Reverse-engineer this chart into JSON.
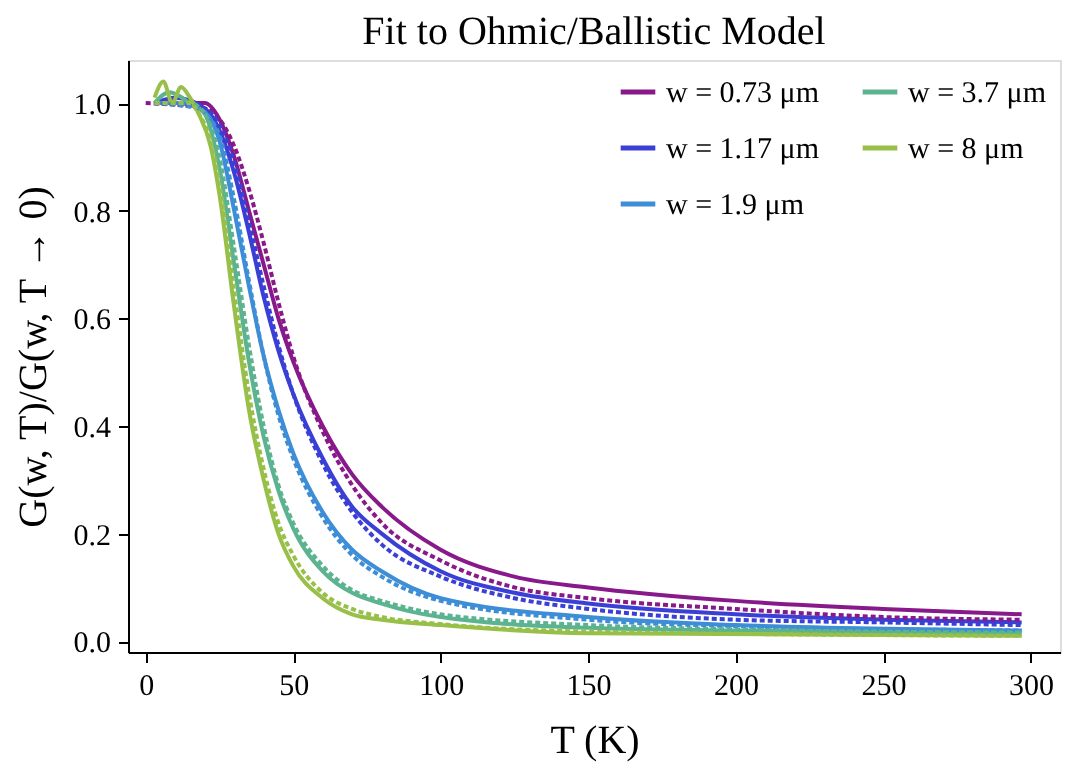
{
  "chart_data": {
    "type": "line",
    "title": "Fit to Ohmic/Ballistic Model",
    "xlabel": "T (K)",
    "ylabel": "G(w, T)/G(w, T → 0)",
    "xlim": [
      -6,
      310
    ],
    "xticks": [
      0,
      50,
      100,
      150,
      200,
      250,
      300
    ],
    "ylim": [
      -0.02,
      1.08
    ],
    "yticks": [
      {
        "value": 0,
        "label": "0.0"
      },
      0.2,
      0.4,
      0.6,
      0.8,
      {
        "value": 1,
        "label": "1.0"
      }
    ],
    "grid": false,
    "legend": "top right",
    "line_style": "solid",
    "series": [
      {
        "name": "w = 0.73 μm",
        "color": "#88198a",
        "x": [
          3,
          10,
          20,
          25,
          30,
          35,
          40,
          45,
          50,
          60,
          70,
          80,
          100,
          125,
          150,
          200,
          250,
          297
        ],
        "values": [
          1.0,
          1.0,
          1.0,
          0.97,
          0.9,
          0.8,
          0.7,
          0.6,
          0.52,
          0.4,
          0.31,
          0.25,
          0.17,
          0.12,
          0.1,
          0.075,
          0.06,
          0.05
        ]
      },
      {
        "name": "w = 1.17 μm",
        "color": "#3a3fd6",
        "x": [
          3,
          10,
          20,
          25,
          30,
          35,
          40,
          45,
          50,
          60,
          70,
          80,
          100,
          125,
          150,
          200,
          250,
          297
        ],
        "values": [
          1.0,
          1.01,
          0.99,
          0.95,
          0.87,
          0.76,
          0.64,
          0.54,
          0.46,
          0.34,
          0.25,
          0.2,
          0.13,
          0.09,
          0.07,
          0.05,
          0.04,
          0.035
        ]
      },
      {
        "name": "w = 1.9 μm",
        "color": "#3d8ed6",
        "x": [
          3,
          10,
          18,
          22,
          25,
          30,
          35,
          40,
          45,
          50,
          60,
          70,
          80,
          100,
          150,
          200,
          297
        ],
        "values": [
          1.0,
          1.0,
          0.99,
          0.97,
          0.93,
          0.8,
          0.66,
          0.53,
          0.43,
          0.35,
          0.24,
          0.17,
          0.13,
          0.08,
          0.045,
          0.03,
          0.02
        ]
      },
      {
        "name": "w = 3.7 μm",
        "color": "#5cb390",
        "x": [
          3,
          8,
          15,
          20,
          25,
          30,
          35,
          40,
          45,
          50,
          60,
          70,
          80,
          100,
          150,
          200,
          297
        ],
        "values": [
          1.0,
          1.02,
          1.0,
          0.98,
          0.88,
          0.7,
          0.52,
          0.38,
          0.28,
          0.21,
          0.13,
          0.09,
          0.07,
          0.045,
          0.025,
          0.02,
          0.015
        ]
      },
      {
        "name": "w = 8 μm",
        "color": "#98c049",
        "x": [
          3,
          6,
          9,
          12,
          15,
          18,
          22,
          25,
          30,
          35,
          40,
          45,
          50,
          60,
          70,
          80,
          100,
          150,
          297
        ],
        "values": [
          1.01,
          1.04,
          1.0,
          1.03,
          1.01,
          0.98,
          0.92,
          0.83,
          0.62,
          0.43,
          0.3,
          0.2,
          0.14,
          0.08,
          0.05,
          0.04,
          0.03,
          0.015,
          0.01
        ]
      },
      {
        "color": "#88198a",
        "line_style": "dotted",
        "x": [
          0,
          20,
          25,
          30,
          35,
          40,
          45,
          50,
          60,
          70,
          80,
          100,
          125,
          150,
          200,
          250,
          297
        ],
        "values": [
          1.0,
          0.99,
          0.97,
          0.92,
          0.84,
          0.74,
          0.63,
          0.53,
          0.39,
          0.29,
          0.22,
          0.15,
          0.1,
          0.08,
          0.06,
          0.045,
          0.04
        ]
      },
      {
        "color": "#3a3fd6",
        "line_style": "dotted",
        "x": [
          3,
          20,
          25,
          30,
          35,
          40,
          45,
          50,
          60,
          70,
          80,
          100,
          125,
          150,
          200,
          250,
          297
        ],
        "values": [
          1.0,
          0.99,
          0.96,
          0.89,
          0.78,
          0.66,
          0.55,
          0.46,
          0.33,
          0.24,
          0.18,
          0.12,
          0.08,
          0.06,
          0.04,
          0.035,
          0.03
        ]
      },
      {
        "color": "#3d8ed6",
        "line_style": "dotted",
        "x": [
          3,
          18,
          22,
          25,
          30,
          35,
          40,
          45,
          50,
          60,
          70,
          80,
          100,
          150,
          200,
          297
        ],
        "values": [
          1.0,
          0.99,
          0.97,
          0.94,
          0.82,
          0.67,
          0.53,
          0.42,
          0.34,
          0.23,
          0.16,
          0.12,
          0.075,
          0.04,
          0.028,
          0.02
        ]
      },
      {
        "color": "#5cb390",
        "line_style": "dotted",
        "x": [
          3,
          15,
          20,
          25,
          30,
          35,
          40,
          45,
          50,
          60,
          70,
          80,
          100,
          150,
          200,
          297
        ],
        "values": [
          1.0,
          1.0,
          0.98,
          0.9,
          0.73,
          0.55,
          0.4,
          0.29,
          0.22,
          0.14,
          0.095,
          0.075,
          0.05,
          0.03,
          0.022,
          0.016
        ]
      },
      {
        "color": "#98c049",
        "line_style": "dotted",
        "x": [
          3,
          15,
          18,
          22,
          25,
          30,
          35,
          40,
          45,
          50,
          60,
          70,
          80,
          100,
          150,
          297
        ],
        "values": [
          1.0,
          1.0,
          0.98,
          0.93,
          0.85,
          0.65,
          0.46,
          0.32,
          0.22,
          0.16,
          0.09,
          0.06,
          0.045,
          0.032,
          0.018,
          0.01
        ]
      }
    ]
  }
}
